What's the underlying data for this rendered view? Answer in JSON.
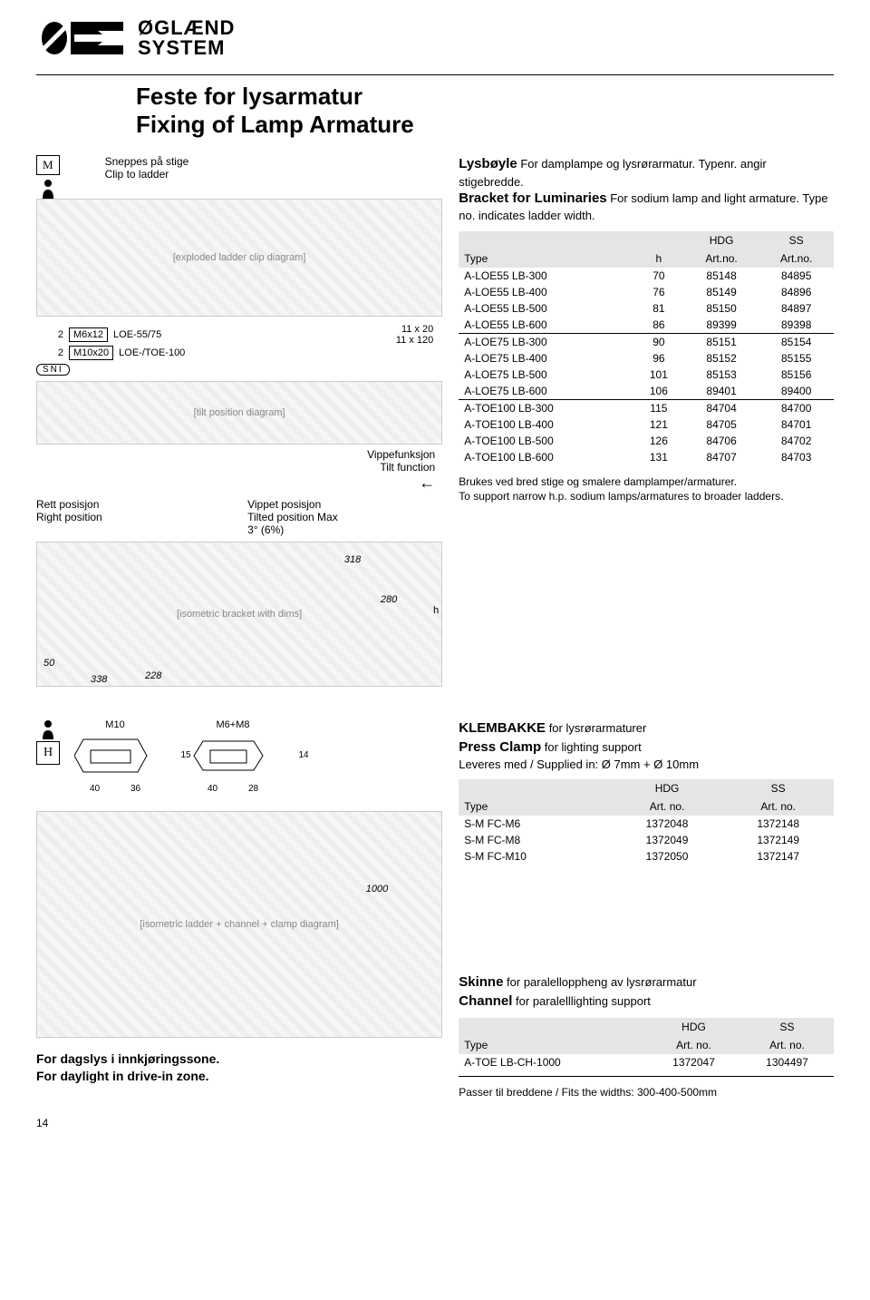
{
  "logo_text_line1": "ØGLÆND",
  "logo_text_line2": "SYSTEM",
  "title_no": "Feste for lysarmatur",
  "title_en": "Fixing of Lamp Armature",
  "snip_no": "Sneppes på stige",
  "snip_en": "Clip to ladder",
  "m_icon": "M",
  "h_icon": "H",
  "sni": "SNI",
  "bolt1_qty": "2",
  "bolt1_size": "M6x12",
  "bolt1_ref": "LOE-55/75",
  "bolt2_qty": "2",
  "bolt2_size": "M10x20",
  "bolt2_ref": "LOE-/TOE-100",
  "dim1": "11 x 20",
  "dim2": "11 x 120",
  "tilt_no": "Vippefunksjon",
  "tilt_en": "Tilt function",
  "rett_no": "Rett posisjon",
  "rett_en": "Right position",
  "vippet_no": "Vippet posisjon",
  "vippet_en": "Tilted position Max 3° (6%)",
  "iso_dims": {
    "a": "318",
    "b": "280",
    "c": "228",
    "d": "338",
    "e": "50",
    "h": "h"
  },
  "section1": {
    "head_no_bold": "Lysbøyle",
    "head_no_rest": " For damplampe og lysrørarmatur. Typenr. angir stigebredde.",
    "head_en_bold": "Bracket for Luminaries",
    "head_en_rest": " For sodium lamp and light armature. Type no. indicates ladder width.",
    "col_type": "Type",
    "col_h": "h",
    "col_hdg": "HDG",
    "col_artno": "Art.no.",
    "col_ss": "SS",
    "rows": [
      {
        "type": "A-LOE55 LB-300",
        "h": "70",
        "hdg": "85148",
        "ss": "84895",
        "sep": false
      },
      {
        "type": "A-LOE55 LB-400",
        "h": "76",
        "hdg": "85149",
        "ss": "84896",
        "sep": false
      },
      {
        "type": "A-LOE55 LB-500",
        "h": "81",
        "hdg": "85150",
        "ss": "84897",
        "sep": false
      },
      {
        "type": "A-LOE55 LB-600",
        "h": "86",
        "hdg": "89399",
        "ss": "89398",
        "sep": false
      },
      {
        "type": "A-LOE75 LB-300",
        "h": "90",
        "hdg": "85151",
        "ss": "85154",
        "sep": true
      },
      {
        "type": "A-LOE75 LB-400",
        "h": "96",
        "hdg": "85152",
        "ss": "85155",
        "sep": false
      },
      {
        "type": "A-LOE75 LB-500",
        "h": "101",
        "hdg": "85153",
        "ss": "85156",
        "sep": false
      },
      {
        "type": "A-LOE75 LB-600",
        "h": "106",
        "hdg": "89401",
        "ss": "89400",
        "sep": false
      },
      {
        "type": "A-TOE100 LB-300",
        "h": "115",
        "hdg": "84704",
        "ss": "84700",
        "sep": true
      },
      {
        "type": "A-TOE100 LB-400",
        "h": "121",
        "hdg": "84705",
        "ss": "84701",
        "sep": false
      },
      {
        "type": "A-TOE100 LB-500",
        "h": "126",
        "hdg": "84706",
        "ss": "84702",
        "sep": false
      },
      {
        "type": "A-TOE100 LB-600",
        "h": "131",
        "hdg": "84707",
        "ss": "84703",
        "sep": false
      }
    ],
    "note_no": "Brukes ved bred stige og smalere damplamper/armaturer.",
    "note_en": "To support narrow h.p. sodium lamps/armatures to broader ladders."
  },
  "section2": {
    "m10": "M10",
    "m6m8": "M6+M8",
    "m10_a": "40",
    "m10_b": "36",
    "m10_h": "15",
    "m6_a": "40",
    "m6_b": "28",
    "m6_h": "14",
    "head_no_bold": "KLEMBAKKE",
    "head_no_rest": " for lysrørarmaturer",
    "head_en_bold": "Press Clamp",
    "head_en_rest": " for lighting support",
    "supply": "Leveres med / Supplied in: Ø 7mm + Ø 10mm",
    "col_type": "Type",
    "col_hdg": "HDG",
    "col_artno": "Art. no.",
    "col_ss": "SS",
    "rows": [
      {
        "type": "S-M FC-M6",
        "hdg": "1372048",
        "ss": "1372148"
      },
      {
        "type": "S-M FC-M8",
        "hdg": "1372049",
        "ss": "1372149"
      },
      {
        "type": "S-M FC-M10",
        "hdg": "1372050",
        "ss": "1372147"
      }
    ]
  },
  "iso2_dim": "1000",
  "section3": {
    "head_no_bold": "Skinne",
    "head_no_rest": " for paralelloppheng av lysrørarmatur",
    "head_en_bold": "Channel",
    "head_en_rest": " for paralelllighting support",
    "col_type": "Type",
    "col_hdg": "HDG",
    "col_artno": "Art. no.",
    "col_ss": "SS",
    "rows": [
      {
        "type": "A-TOE LB-CH-1000",
        "hdg": "1372047",
        "ss": "1304497"
      }
    ],
    "fit_note": "Passer til breddene / Fits the widths: 300-400-500mm"
  },
  "caption_no": "For dagslys i innkjøringssone.",
  "caption_en": "For daylight in drive-in zone.",
  "pagenum": "14"
}
